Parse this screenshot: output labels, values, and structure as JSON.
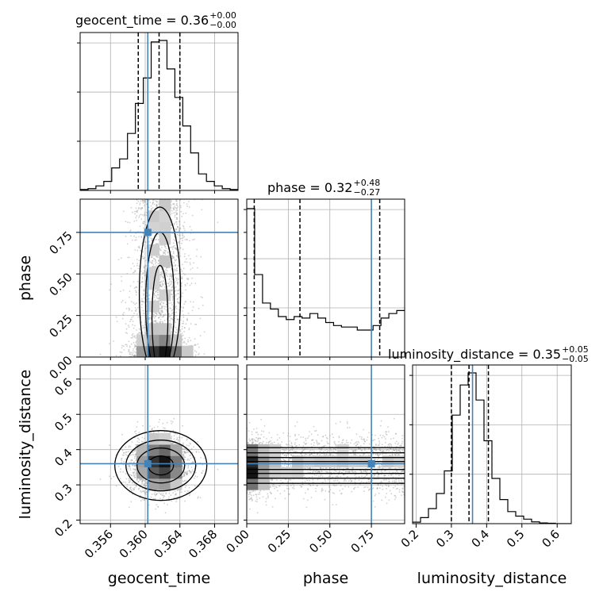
{
  "chart_data": {
    "type": "corner",
    "parameters": [
      "geocent_time",
      "phase",
      "luminosity_distance"
    ],
    "truths": {
      "geocent_time": 0.3603,
      "phase": 0.75,
      "luminosity_distance": 0.36
    },
    "colors": {
      "truth": "#4682b4",
      "hist": "#000000",
      "grid": "#b0b0b0",
      "scatter": "#9a9a9a"
    },
    "ranges": {
      "geocent_time": [
        0.3525,
        0.3707
      ],
      "phase": [
        0.0,
        0.95
      ],
      "luminosity_distance": [
        0.19,
        0.64
      ]
    },
    "ticks": {
      "geocent_time": [
        {
          "v": 0.356,
          "label": "0.356"
        },
        {
          "v": 0.36,
          "label": "0.360"
        },
        {
          "v": 0.364,
          "label": "0.364"
        },
        {
          "v": 0.368,
          "label": "0.368"
        }
      ],
      "phase": [
        {
          "v": 0.0,
          "label": "0.00"
        },
        {
          "v": 0.25,
          "label": "0.25"
        },
        {
          "v": 0.5,
          "label": "0.50"
        },
        {
          "v": 0.75,
          "label": "0.75"
        }
      ],
      "luminosity_distance": [
        {
          "v": 0.2,
          "label": "0.2"
        },
        {
          "v": 0.3,
          "label": "0.3"
        },
        {
          "v": 0.4,
          "label": "0.4"
        },
        {
          "v": 0.5,
          "label": "0.5"
        },
        {
          "v": 0.6,
          "label": "0.6"
        }
      ]
    },
    "axis_labels": {
      "geocent_time": "geocent_time",
      "phase": "phase",
      "luminosity_distance": "luminosity_distance"
    },
    "titles": [
      {
        "param": "geocent_time",
        "name": "geocent_time",
        "median": "0.36",
        "plus": "+0.00",
        "minus": "−0.00"
      },
      {
        "param": "phase",
        "name": "phase",
        "median": "0.32",
        "plus": "+0.48",
        "minus": "−0.27"
      },
      {
        "param": "luminosity_distance",
        "name": "luminosity_distance",
        "median": "0.35",
        "plus": "+0.05",
        "minus": "−0.05"
      }
    ],
    "quantiles": {
      "geocent_time": [
        0.3592,
        0.3616,
        0.364
      ],
      "phase": [
        0.045,
        0.32,
        0.8
      ],
      "luminosity_distance": [
        0.3,
        0.35,
        0.405
      ]
    },
    "histograms": {
      "geocent_time": {
        "edges": [
          0.3525,
          0.35341,
          0.35432,
          0.35523,
          0.35614,
          0.35705,
          0.35796,
          0.35887,
          0.35978,
          0.36069,
          0.3616,
          0.36251,
          0.36342,
          0.36433,
          0.36524,
          0.36615,
          0.36706,
          0.36797,
          0.36888,
          0.36979,
          0.3707
        ],
        "counts": [
          0.006,
          0.012,
          0.03,
          0.06,
          0.15,
          0.21,
          0.38,
          0.58,
          0.75,
          0.99,
          1.0,
          0.81,
          0.62,
          0.43,
          0.25,
          0.11,
          0.06,
          0.03,
          0.012,
          0.006
        ]
      },
      "phase": {
        "edges": [
          0.0,
          0.0475,
          0.095,
          0.1425,
          0.19,
          0.2375,
          0.285,
          0.3325,
          0.38,
          0.4275,
          0.475,
          0.5225,
          0.57,
          0.6175,
          0.665,
          0.7125,
          0.76,
          0.8075,
          0.855,
          0.9025,
          0.95
        ],
        "counts": [
          0.99,
          0.55,
          0.36,
          0.32,
          0.27,
          0.25,
          0.27,
          0.26,
          0.29,
          0.26,
          0.23,
          0.21,
          0.2,
          0.2,
          0.18,
          0.18,
          0.21,
          0.26,
          0.29,
          0.31
        ]
      },
      "luminosity_distance": {
        "edges": [
          0.19,
          0.2125,
          0.235,
          0.2575,
          0.28,
          0.3025,
          0.325,
          0.3475,
          0.37,
          0.3925,
          0.415,
          0.4375,
          0.46,
          0.4825,
          0.505,
          0.5275,
          0.55,
          0.5725,
          0.595,
          0.6175,
          0.64
        ],
        "counts": [
          0.01,
          0.04,
          0.1,
          0.2,
          0.35,
          0.72,
          0.92,
          1.0,
          0.82,
          0.55,
          0.3,
          0.16,
          0.08,
          0.05,
          0.03,
          0.012,
          0.005,
          0.003,
          0.0,
          0.0
        ]
      }
    },
    "posterior": {
      "geocent_time": {
        "mean": 0.3617,
        "sd": 0.0017
      },
      "phase": {
        "concentration_low": 0.05,
        "spread_high": 0.95
      },
      "luminosity_distance": {
        "mean": 0.352,
        "sd": 0.04
      }
    },
    "grid": true
  }
}
